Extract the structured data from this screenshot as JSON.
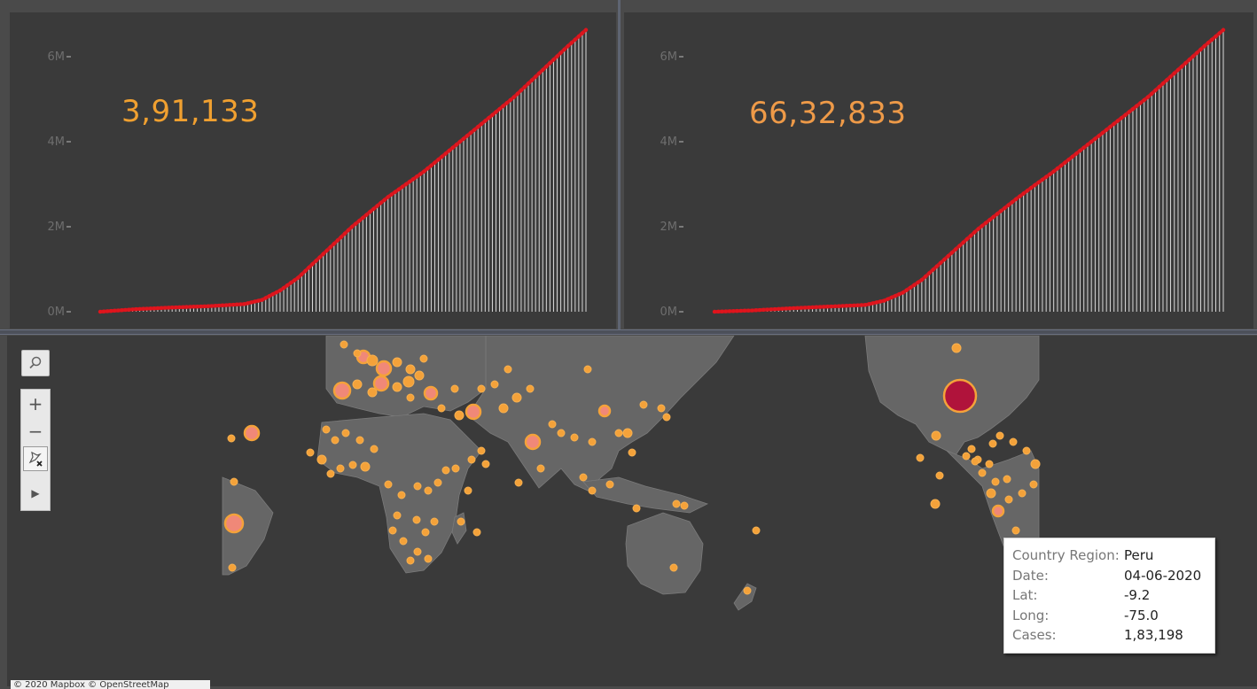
{
  "colors": {
    "background": "#3a3a3a",
    "left_number": "#f0a030",
    "right_number": "#ee9a48",
    "line": "#e0141c",
    "bars": "#d8d8d8",
    "map_land": "#6a6a6a",
    "map_dot": "#f4a23a",
    "map_dot_large": "#f08878",
    "map_dot_highlight": "#b0133b"
  },
  "chart_left": {
    "big_number": "3,91,133",
    "y_ticks": [
      "6M",
      "4M",
      "2M",
      "0M"
    ]
  },
  "chart_right": {
    "big_number": "66,32,833",
    "y_ticks": [
      "6M",
      "4M",
      "2M",
      "0M"
    ]
  },
  "chart_data": [
    {
      "type": "line",
      "title": "",
      "xlabel": "",
      "ylabel": "",
      "ylim": [
        0,
        6600000
      ],
      "x": [
        0,
        10,
        20,
        30,
        40,
        45,
        50,
        55,
        60,
        65,
        70,
        75,
        80,
        85,
        90,
        95,
        100,
        105,
        110,
        115,
        120,
        125,
        130,
        135
      ],
      "series": [
        {
          "values": [
            0,
            60000,
            100000,
            130000,
            180000,
            280000,
            500000,
            800000,
            1200000,
            1600000,
            2000000,
            2350000,
            2700000,
            3000000,
            3300000,
            3650000,
            4000000,
            4350000,
            4700000,
            5050000,
            5450000,
            5850000,
            6250000,
            6630000
          ]
        }
      ]
    },
    {
      "type": "line",
      "title": "",
      "xlabel": "",
      "ylabel": "",
      "ylim": [
        0,
        6600000
      ],
      "x": [
        0,
        10,
        20,
        30,
        40,
        45,
        50,
        55,
        60,
        65,
        70,
        75,
        80,
        85,
        90,
        95,
        100,
        105,
        110,
        115,
        120,
        125,
        130,
        135
      ],
      "series": [
        {
          "values": [
            0,
            30000,
            80000,
            120000,
            160000,
            260000,
            450000,
            750000,
            1150000,
            1550000,
            1950000,
            2300000,
            2650000,
            2980000,
            3300000,
            3650000,
            4000000,
            4350000,
            4700000,
            5050000,
            5450000,
            5850000,
            6250000,
            6630000
          ]
        }
      ]
    }
  ],
  "map": {
    "toolbar": [
      {
        "name": "search-icon",
        "symbol": "⌕"
      },
      {
        "name": "zoom-in-icon",
        "symbol": "+"
      },
      {
        "name": "zoom-out-icon",
        "symbol": "−"
      },
      {
        "name": "reset-pin-icon",
        "symbol": "✕"
      },
      {
        "name": "expand-arrow-icon",
        "symbol": "▶"
      }
    ],
    "attribution": "© 2020 Mapbox © OpenStreetMap"
  },
  "tooltip": {
    "rows": [
      {
        "key": "Country Region:",
        "value": "Peru"
      },
      {
        "key": "Date:",
        "value": "04-06-2020"
      },
      {
        "key": "Lat:",
        "value": "-9.2"
      },
      {
        "key": "Long:",
        "value": "-75.0"
      },
      {
        "key": "Cases:",
        "value": "1,83,198"
      }
    ]
  }
}
